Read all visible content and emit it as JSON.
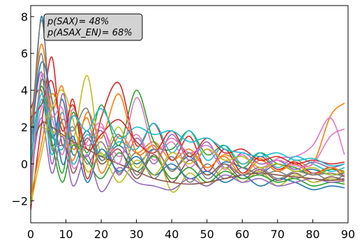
{
  "chart_data": {
    "type": "line",
    "title": "",
    "xlabel": "",
    "ylabel": "",
    "xlim": [
      0,
      90
    ],
    "ylim": [
      -3.2,
      8.6
    ],
    "x_ticks": [
      0,
      10,
      20,
      30,
      40,
      50,
      60,
      70,
      80,
      90
    ],
    "y_ticks": [
      -2,
      0,
      2,
      4,
      6,
      8
    ],
    "x_tick_labels": [
      "0",
      "10",
      "20",
      "30",
      "40",
      "50",
      "60",
      "70",
      "80",
      "90"
    ],
    "y_tick_labels": [
      "−2",
      "0",
      "2",
      "4",
      "6",
      "8"
    ],
    "grid": false,
    "legend": "none",
    "annotations": [
      "p(SAX)= 48%",
      "p(ASAX_EN)= 68%"
    ],
    "annotation_placement": "top-left",
    "series_colors": [
      "#1f77b4",
      "#ff7f0e",
      "#2ca02c",
      "#d62728",
      "#9467bd",
      "#8c564b",
      "#e377c2",
      "#7f7f7f",
      "#bcbd22",
      "#17becf"
    ],
    "series": [
      {
        "x": [
          0,
          3,
          6,
          9,
          12,
          16,
          20,
          25,
          30,
          35,
          40,
          45,
          50,
          55,
          60,
          65,
          70,
          75,
          80,
          85,
          89
        ],
        "values": [
          -1.2,
          8.0,
          1.5,
          3.5,
          0.5,
          1.8,
          0.2,
          1.0,
          0.0,
          0.8,
          -0.3,
          0.4,
          -0.6,
          0.1,
          -0.2,
          -0.5,
          0.0,
          -0.4,
          -0.3,
          -0.6,
          -0.5
        ]
      },
      {
        "x": [
          0,
          3,
          6,
          9,
          12,
          16,
          20,
          25,
          30,
          35,
          40,
          45,
          50,
          55,
          60,
          65,
          70,
          75,
          80,
          85,
          89
        ],
        "values": [
          2.0,
          6.5,
          3.0,
          4.2,
          0.8,
          2.5,
          -0.5,
          1.5,
          0.6,
          1.2,
          0.2,
          0.8,
          -0.2,
          0.5,
          0.0,
          0.3,
          -0.4,
          0.2,
          0.0,
          2.6,
          3.3
        ]
      },
      {
        "x": [
          0,
          3,
          6,
          9,
          12,
          16,
          20,
          25,
          30,
          35,
          40,
          45,
          50,
          55,
          60,
          65,
          70,
          75,
          80,
          85,
          89
        ],
        "values": [
          -2.0,
          4.5,
          2.0,
          -0.5,
          2.8,
          0.6,
          3.2,
          1.0,
          4.0,
          1.2,
          0.8,
          1.8,
          0.5,
          1.0,
          -0.2,
          0.6,
          0.0,
          -0.2,
          -0.6,
          -0.3,
          -0.4
        ]
      },
      {
        "x": [
          0,
          3,
          6,
          9,
          12,
          16,
          20,
          25,
          30,
          35,
          40,
          45,
          50,
          55,
          60,
          65,
          70,
          75,
          80,
          85,
          89
        ],
        "values": [
          -2.5,
          2.0,
          5.8,
          1.0,
          3.5,
          -0.8,
          2.5,
          4.4,
          1.0,
          2.2,
          0.2,
          1.5,
          -0.4,
          0.8,
          -0.5,
          0.4,
          -0.3,
          0.1,
          -0.5,
          -0.2,
          -0.7
        ]
      },
      {
        "x": [
          0,
          3,
          6,
          9,
          12,
          16,
          20,
          25,
          30,
          35,
          40,
          45,
          50,
          55,
          60,
          65,
          70,
          75,
          80,
          85,
          89
        ],
        "values": [
          1.0,
          5.0,
          0.0,
          3.8,
          1.2,
          0.4,
          1.8,
          -0.6,
          1.4,
          0.0,
          1.6,
          0.2,
          1.2,
          -0.2,
          0.6,
          0.0,
          0.2,
          -0.3,
          0.1,
          -0.2,
          0.0
        ]
      },
      {
        "x": [
          0,
          3,
          6,
          9,
          12,
          16,
          20,
          25,
          30,
          35,
          40,
          45,
          50,
          55,
          60,
          65,
          70,
          75,
          80,
          85,
          89
        ],
        "values": [
          3.0,
          4.0,
          1.0,
          2.2,
          -0.5,
          1.4,
          0.0,
          0.8,
          -0.8,
          0.5,
          -1.0,
          0.2,
          -0.6,
          0.0,
          -0.8,
          -0.3,
          -0.9,
          -0.5,
          -1.0,
          -0.7,
          -0.9
        ]
      },
      {
        "x": [
          0,
          3,
          6,
          9,
          12,
          16,
          20,
          25,
          30,
          35,
          40,
          45,
          50,
          55,
          60,
          65,
          70,
          75,
          80,
          85,
          89
        ],
        "values": [
          -0.5,
          3.0,
          2.5,
          0.5,
          3.0,
          1.0,
          2.0,
          0.4,
          1.6,
          0.2,
          1.2,
          -0.2,
          0.8,
          -0.3,
          0.5,
          -0.4,
          0.3,
          0.4,
          1.0,
          2.5,
          0.5
        ]
      },
      {
        "x": [
          0,
          3,
          6,
          9,
          12,
          16,
          20,
          25,
          30,
          35,
          40,
          45,
          50,
          55,
          60,
          65,
          70,
          75,
          80,
          85,
          89
        ],
        "values": [
          0.5,
          7.8,
          2.0,
          1.0,
          2.0,
          0.0,
          1.2,
          -0.5,
          0.6,
          -0.8,
          0.4,
          -1.0,
          0.0,
          -0.8,
          -0.2,
          -0.6,
          -0.4,
          -0.8,
          -0.5,
          -0.9,
          -0.6
        ]
      },
      {
        "x": [
          0,
          3,
          6,
          9,
          12,
          16,
          20,
          25,
          30,
          35,
          40,
          45,
          50,
          55,
          60,
          65,
          70,
          75,
          80,
          85,
          89
        ],
        "values": [
          2.2,
          2.0,
          1.8,
          1.5,
          1.2,
          4.8,
          0.5,
          2.0,
          -0.2,
          1.0,
          -1.5,
          -0.5,
          -1.2,
          -0.2,
          -1.0,
          -0.4,
          -1.2,
          -0.6,
          -1.0,
          -0.8,
          -1.0
        ]
      },
      {
        "x": [
          0,
          3,
          6,
          9,
          12,
          16,
          20,
          25,
          30,
          35,
          40,
          45,
          50,
          55,
          60,
          65,
          70,
          75,
          80,
          85,
          89
        ],
        "values": [
          -1.0,
          3.5,
          0.5,
          2.8,
          0.0,
          1.6,
          0.4,
          1.2,
          0.8,
          2.2,
          0.6,
          1.8,
          0.2,
          1.0,
          0.0,
          0.6,
          -0.2,
          0.4,
          0.0,
          -0.4,
          -0.2
        ]
      },
      {
        "x": [
          0,
          3,
          6,
          9,
          12,
          16,
          20,
          25,
          30,
          35,
          40,
          45,
          50,
          55,
          60,
          65,
          70,
          75,
          80,
          85,
          89
        ],
        "values": [
          1.5,
          5.5,
          3.5,
          0.0,
          1.5,
          -1.0,
          0.8,
          -0.4,
          0.4,
          -0.6,
          0.0,
          -0.8,
          -0.4,
          -1.0,
          -0.6,
          -1.2,
          -0.8,
          -1.0,
          -1.4,
          -1.2,
          -1.3
        ]
      },
      {
        "x": [
          0,
          3,
          6,
          9,
          12,
          16,
          20,
          25,
          30,
          35,
          40,
          45,
          50,
          55,
          60,
          65,
          70,
          75,
          80,
          85,
          89
        ],
        "values": [
          -1.8,
          1.0,
          3.8,
          2.2,
          0.2,
          2.8,
          1.4,
          3.8,
          0.6,
          1.0,
          -0.4,
          0.6,
          -0.2,
          0.4,
          -0.6,
          0.2,
          -0.4,
          0.0,
          -0.6,
          -0.2,
          -0.5
        ]
      },
      {
        "x": [
          0,
          3,
          6,
          9,
          12,
          16,
          20,
          25,
          30,
          35,
          40,
          45,
          50,
          55,
          60,
          65,
          70,
          75,
          80,
          85,
          89
        ],
        "values": [
          0.0,
          4.2,
          1.2,
          -1.0,
          1.0,
          0.2,
          -0.8,
          0.6,
          -0.4,
          0.4,
          -0.8,
          -0.2,
          -1.0,
          -0.4,
          -0.8,
          -0.6,
          -1.0,
          -0.8,
          -1.2,
          -1.0,
          -1.1
        ]
      },
      {
        "x": [
          0,
          3,
          6,
          9,
          12,
          16,
          20,
          25,
          30,
          35,
          40,
          45,
          50,
          55,
          60,
          65,
          70,
          75,
          80,
          85,
          89
        ],
        "values": [
          2.5,
          3.2,
          4.5,
          1.8,
          3.2,
          0.8,
          1.6,
          2.4,
          1.2,
          0.6,
          1.8,
          0.4,
          1.4,
          0.6,
          0.8,
          0.2,
          0.4,
          0.0,
          0.2,
          0.0,
          0.1
        ]
      },
      {
        "x": [
          0,
          3,
          6,
          9,
          12,
          16,
          20,
          25,
          30,
          35,
          40,
          45,
          50,
          55,
          60,
          65,
          70,
          75,
          80,
          85,
          89
        ],
        "values": [
          -0.8,
          2.5,
          -0.5,
          1.5,
          -1.2,
          0.5,
          -1.5,
          -0.2,
          -1.0,
          -1.2,
          -1.4,
          -0.8,
          -1.2,
          -0.6,
          -1.0,
          -0.8,
          -1.2,
          -1.0,
          -0.8,
          -1.0,
          -0.9
        ]
      },
      {
        "x": [
          0,
          3,
          6,
          9,
          12,
          16,
          20,
          25,
          30,
          35,
          40,
          45,
          50,
          55,
          60,
          65,
          70,
          75,
          80,
          85,
          89
        ],
        "values": [
          0.8,
          2.2,
          2.0,
          1.6,
          1.2,
          0.8,
          0.4,
          0.0,
          -0.4,
          -0.8,
          -1.0,
          -1.1,
          -1.0,
          -0.8,
          -0.6,
          -0.5,
          -0.6,
          -0.7,
          -0.8,
          -0.9,
          -0.8
        ]
      },
      {
        "x": [
          0,
          3,
          6,
          9,
          12,
          16,
          20,
          25,
          30,
          35,
          40,
          45,
          50,
          55,
          60,
          65,
          70,
          75,
          80,
          85,
          89
        ],
        "values": [
          -1.5,
          4.8,
          2.6,
          3.0,
          -0.2,
          1.2,
          2.2,
          0.0,
          3.6,
          0.8,
          1.4,
          0.6,
          1.0,
          0.2,
          0.4,
          -0.2,
          0.2,
          -0.1,
          0.0,
          1.5,
          1.9
        ]
      },
      {
        "x": [
          0,
          3,
          6,
          9,
          12,
          16,
          20,
          25,
          30,
          35,
          40,
          45,
          50,
          55,
          60,
          65,
          70,
          75,
          80,
          85,
          89
        ],
        "values": [
          1.2,
          6.0,
          0.8,
          2.4,
          1.8,
          3.0,
          0.2,
          1.6,
          -0.6,
          0.8,
          -0.4,
          0.6,
          -0.8,
          0.0,
          -0.6,
          -0.2,
          -0.8,
          -0.4,
          -0.6,
          -0.5,
          -0.7
        ]
      },
      {
        "x": [
          0,
          3,
          6,
          9,
          12,
          16,
          20,
          25,
          30,
          35,
          40,
          45,
          50,
          55,
          60,
          65,
          70,
          75,
          80,
          85,
          89
        ],
        "values": [
          -2.2,
          0.5,
          3.0,
          4.0,
          2.4,
          -0.4,
          0.6,
          -1.0,
          0.2,
          -0.6,
          0.6,
          0.0,
          0.8,
          0.2,
          0.4,
          -0.2,
          0.0,
          -0.4,
          -0.2,
          -0.6,
          -0.4
        ]
      },
      {
        "x": [
          0,
          3,
          6,
          9,
          12,
          16,
          20,
          25,
          30,
          35,
          40,
          45,
          50,
          55,
          60,
          65,
          70,
          75,
          80,
          85,
          89
        ],
        "values": [
          0.3,
          3.8,
          1.6,
          0.8,
          2.6,
          1.8,
          3.0,
          1.4,
          2.0,
          1.6,
          1.8,
          1.2,
          1.4,
          0.8,
          0.6,
          0.4,
          0.6,
          0.2,
          0.3,
          -0.1,
          0.0
        ]
      }
    ]
  }
}
